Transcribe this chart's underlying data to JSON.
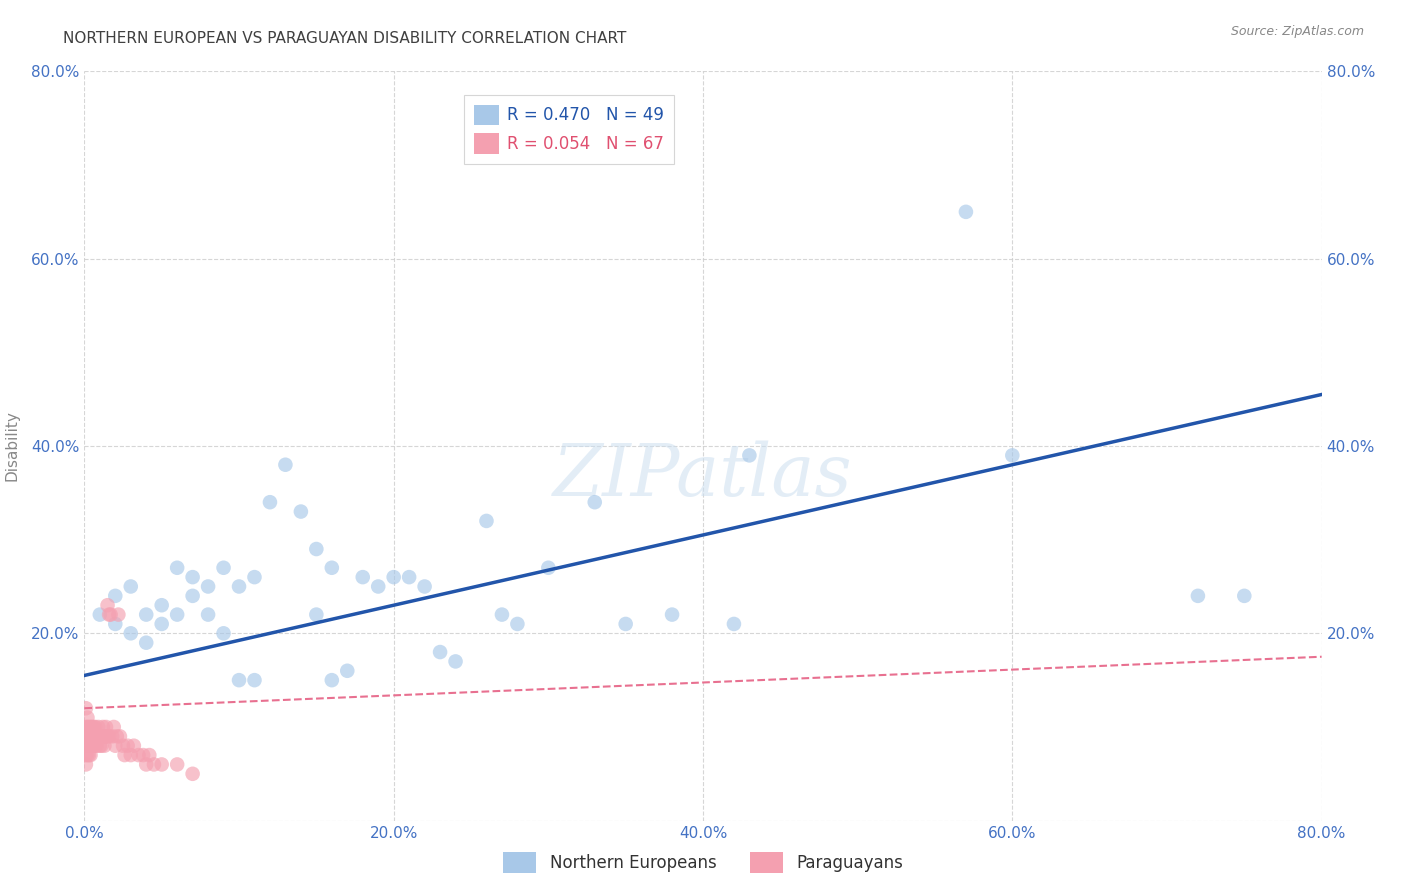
{
  "title": "NORTHERN EUROPEAN VS PARAGUAYAN DISABILITY CORRELATION CHART",
  "source": "Source: ZipAtlas.com",
  "ylabel": "Disability",
  "xlim": [
    0.0,
    0.8
  ],
  "ylim": [
    0.0,
    0.8
  ],
  "xticks": [
    0.0,
    0.2,
    0.4,
    0.6,
    0.8
  ],
  "yticks": [
    0.0,
    0.2,
    0.4,
    0.6,
    0.8
  ],
  "xtick_labels": [
    "0.0%",
    "20.0%",
    "40.0%",
    "60.0%",
    "80.0%"
  ],
  "ytick_labels_left": [
    "",
    "20.0%",
    "40.0%",
    "60.0%",
    "80.0%"
  ],
  "ytick_labels_right": [
    "20.0%",
    "40.0%",
    "60.0%",
    "80.0%"
  ],
  "watermark_text": "ZIPatlas",
  "blue_R": 0.47,
  "blue_N": 49,
  "pink_R": 0.054,
  "pink_N": 67,
  "blue_color": "#a8c8e8",
  "pink_color": "#f4a0b0",
  "blue_line_color": "#2255aa",
  "pink_line_color": "#e87090",
  "blue_scatter": [
    [
      0.01,
      0.22
    ],
    [
      0.02,
      0.21
    ],
    [
      0.02,
      0.24
    ],
    [
      0.03,
      0.2
    ],
    [
      0.03,
      0.25
    ],
    [
      0.04,
      0.22
    ],
    [
      0.04,
      0.19
    ],
    [
      0.05,
      0.23
    ],
    [
      0.05,
      0.21
    ],
    [
      0.06,
      0.27
    ],
    [
      0.06,
      0.22
    ],
    [
      0.07,
      0.26
    ],
    [
      0.07,
      0.24
    ],
    [
      0.08,
      0.25
    ],
    [
      0.08,
      0.22
    ],
    [
      0.09,
      0.27
    ],
    [
      0.09,
      0.2
    ],
    [
      0.1,
      0.25
    ],
    [
      0.1,
      0.15
    ],
    [
      0.11,
      0.26
    ],
    [
      0.11,
      0.15
    ],
    [
      0.12,
      0.34
    ],
    [
      0.13,
      0.38
    ],
    [
      0.14,
      0.33
    ],
    [
      0.15,
      0.29
    ],
    [
      0.15,
      0.22
    ],
    [
      0.16,
      0.27
    ],
    [
      0.16,
      0.15
    ],
    [
      0.17,
      0.16
    ],
    [
      0.18,
      0.26
    ],
    [
      0.19,
      0.25
    ],
    [
      0.2,
      0.26
    ],
    [
      0.21,
      0.26
    ],
    [
      0.22,
      0.25
    ],
    [
      0.23,
      0.18
    ],
    [
      0.24,
      0.17
    ],
    [
      0.26,
      0.32
    ],
    [
      0.27,
      0.22
    ],
    [
      0.28,
      0.21
    ],
    [
      0.3,
      0.27
    ],
    [
      0.33,
      0.34
    ],
    [
      0.35,
      0.21
    ],
    [
      0.38,
      0.22
    ],
    [
      0.42,
      0.21
    ],
    [
      0.43,
      0.39
    ],
    [
      0.57,
      0.65
    ],
    [
      0.6,
      0.39
    ],
    [
      0.72,
      0.24
    ],
    [
      0.75,
      0.24
    ]
  ],
  "pink_scatter": [
    [
      0.001,
      0.09
    ],
    [
      0.001,
      0.08
    ],
    [
      0.001,
      0.07
    ],
    [
      0.001,
      0.1
    ],
    [
      0.001,
      0.06
    ],
    [
      0.001,
      0.12
    ],
    [
      0.002,
      0.09
    ],
    [
      0.002,
      0.08
    ],
    [
      0.002,
      0.1
    ],
    [
      0.002,
      0.07
    ],
    [
      0.002,
      0.11
    ],
    [
      0.002,
      0.09
    ],
    [
      0.003,
      0.1
    ],
    [
      0.003,
      0.08
    ],
    [
      0.003,
      0.09
    ],
    [
      0.003,
      0.07
    ],
    [
      0.004,
      0.1
    ],
    [
      0.004,
      0.09
    ],
    [
      0.004,
      0.08
    ],
    [
      0.004,
      0.07
    ],
    [
      0.005,
      0.1
    ],
    [
      0.005,
      0.09
    ],
    [
      0.005,
      0.08
    ],
    [
      0.006,
      0.09
    ],
    [
      0.006,
      0.1
    ],
    [
      0.006,
      0.08
    ],
    [
      0.007,
      0.09
    ],
    [
      0.007,
      0.1
    ],
    [
      0.007,
      0.08
    ],
    [
      0.008,
      0.09
    ],
    [
      0.008,
      0.08
    ],
    [
      0.009,
      0.1
    ],
    [
      0.009,
      0.09
    ],
    [
      0.01,
      0.09
    ],
    [
      0.01,
      0.08
    ],
    [
      0.011,
      0.09
    ],
    [
      0.011,
      0.08
    ],
    [
      0.012,
      0.1
    ],
    [
      0.012,
      0.09
    ],
    [
      0.013,
      0.09
    ],
    [
      0.013,
      0.08
    ],
    [
      0.014,
      0.09
    ],
    [
      0.014,
      0.1
    ],
    [
      0.015,
      0.23
    ],
    [
      0.015,
      0.09
    ],
    [
      0.016,
      0.22
    ],
    [
      0.016,
      0.09
    ],
    [
      0.017,
      0.22
    ],
    [
      0.018,
      0.09
    ],
    [
      0.019,
      0.1
    ],
    [
      0.02,
      0.08
    ],
    [
      0.021,
      0.09
    ],
    [
      0.022,
      0.22
    ],
    [
      0.023,
      0.09
    ],
    [
      0.025,
      0.08
    ],
    [
      0.026,
      0.07
    ],
    [
      0.028,
      0.08
    ],
    [
      0.03,
      0.07
    ],
    [
      0.032,
      0.08
    ],
    [
      0.035,
      0.07
    ],
    [
      0.038,
      0.07
    ],
    [
      0.04,
      0.06
    ],
    [
      0.042,
      0.07
    ],
    [
      0.045,
      0.06
    ],
    [
      0.05,
      0.06
    ],
    [
      0.06,
      0.06
    ],
    [
      0.07,
      0.05
    ]
  ],
  "blue_line_x": [
    0.0,
    0.8
  ],
  "blue_line_y": [
    0.155,
    0.455
  ],
  "pink_line_x": [
    0.0,
    0.8
  ],
  "pink_line_y": [
    0.12,
    0.175
  ],
  "background_color": "#ffffff",
  "grid_color": "#cccccc",
  "tick_color": "#4472c4",
  "title_color": "#404040",
  "source_color": "#888888",
  "ylabel_color": "#888888"
}
